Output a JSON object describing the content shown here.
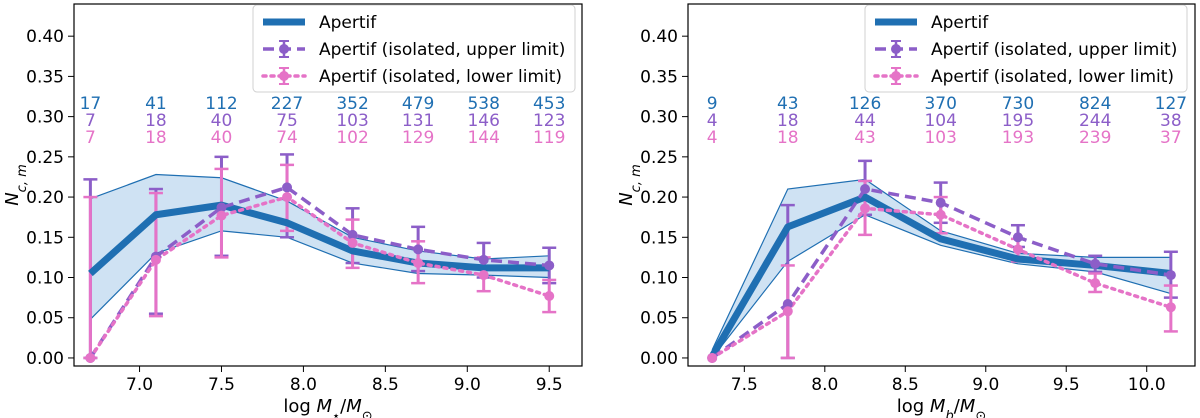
{
  "colors": {
    "apertif": "#1f6fb2",
    "band": "#cfe2f3",
    "upper": "#8c5ec8",
    "lower": "#e573c7",
    "count_apertif": "#1f6fb2",
    "count_upper": "#8c5ec8",
    "count_lower": "#e573c7"
  },
  "chart_data": [
    {
      "type": "line",
      "xlabel": "log M⋆/M⊙",
      "ylabel": "N_c,m",
      "xlim": [
        6.6,
        9.7
      ],
      "ylim": [
        -0.01,
        0.44
      ],
      "xticks": [
        "7.0",
        "7.5",
        "8.0",
        "8.5",
        "9.0",
        "9.5"
      ],
      "yticks": [
        "0.00",
        "0.05",
        "0.10",
        "0.15",
        "0.20",
        "0.25",
        "0.30",
        "0.35",
        "0.40"
      ],
      "legend": [
        "Apertif",
        "Apertif (isolated, upper limit)",
        "Apertif (isolated, lower limit)"
      ],
      "x": [
        6.7,
        7.1,
        7.5,
        7.9,
        8.3,
        8.7,
        9.1,
        9.5
      ],
      "apertif": [
        0.105,
        0.178,
        0.19,
        0.168,
        0.133,
        0.118,
        0.112,
        0.112
      ],
      "apertif_band_upper": [
        0.198,
        0.228,
        0.224,
        0.195,
        0.15,
        0.133,
        0.123,
        0.127
      ],
      "apertif_band_lower": [
        0.048,
        0.13,
        0.158,
        0.15,
        0.118,
        0.105,
        0.103,
        0.1
      ],
      "upper_limit": [
        0.0,
        0.126,
        0.187,
        0.212,
        0.153,
        0.135,
        0.122,
        0.115
      ],
      "upper_err": [
        0.222,
        0.21,
        0.25,
        0.253,
        0.186,
        0.163,
        0.143,
        0.137
      ],
      "upper_err_low": [
        0.0,
        0.055,
        0.127,
        0.15,
        0.118,
        0.108,
        0.1,
        0.093
      ],
      "lower_limit": [
        0.0,
        0.122,
        0.177,
        0.2,
        0.143,
        0.118,
        0.103,
        0.077
      ],
      "lower_err": [
        0.2,
        0.205,
        0.235,
        0.24,
        0.172,
        0.145,
        0.125,
        0.097
      ],
      "lower_err_low": [
        0.0,
        0.052,
        0.125,
        0.158,
        0.112,
        0.093,
        0.083,
        0.057
      ],
      "counts_apertif": [
        "17",
        "41",
        "112",
        "227",
        "352",
        "479",
        "538",
        "453"
      ],
      "counts_upper": [
        "7",
        "18",
        "40",
        "75",
        "103",
        "131",
        "146",
        "123"
      ],
      "counts_lower": [
        "7",
        "18",
        "40",
        "74",
        "102",
        "129",
        "144",
        "119"
      ]
    },
    {
      "type": "line",
      "xlabel": "log M_b/M⊙",
      "ylabel": "N_c,m",
      "xlim": [
        7.15,
        10.3
      ],
      "ylim": [
        -0.01,
        0.44
      ],
      "xticks": [
        "7.5",
        "8.0",
        "8.5",
        "9.0",
        "9.5",
        "10.0"
      ],
      "yticks": [
        "0.00",
        "0.05",
        "0.10",
        "0.15",
        "0.20",
        "0.25",
        "0.30",
        "0.35",
        "0.40"
      ],
      "legend": [
        "Apertif",
        "Apertif (isolated, upper limit)",
        "Apertif (isolated, lower limit)"
      ],
      "x": [
        7.3,
        7.77,
        8.25,
        8.72,
        9.2,
        9.68,
        10.15
      ],
      "apertif": [
        0.002,
        0.163,
        0.2,
        0.148,
        0.123,
        0.115,
        0.105
      ],
      "apertif_band_upper": [
        0.01,
        0.21,
        0.222,
        0.158,
        0.13,
        0.125,
        0.125
      ],
      "apertif_band_lower": [
        0.0,
        0.12,
        0.178,
        0.14,
        0.117,
        0.107,
        0.08
      ],
      "upper_limit": [
        0.0,
        0.067,
        0.21,
        0.193,
        0.15,
        0.117,
        0.103
      ],
      "upper_err": [
        0.0,
        0.19,
        0.245,
        0.218,
        0.165,
        0.127,
        0.132
      ],
      "upper_err_low": [
        0.0,
        0.0,
        0.178,
        0.168,
        0.138,
        0.107,
        0.075
      ],
      "lower_limit": [
        0.0,
        0.058,
        0.186,
        0.178,
        0.135,
        0.093,
        0.063
      ],
      "lower_err": [
        0.0,
        0.115,
        0.22,
        0.2,
        0.148,
        0.105,
        0.09
      ],
      "lower_err_low": [
        0.0,
        0.0,
        0.153,
        0.155,
        0.12,
        0.082,
        0.033
      ],
      "counts_apertif": [
        "9",
        "43",
        "126",
        "370",
        "730",
        "824",
        "127"
      ],
      "counts_upper": [
        "4",
        "18",
        "44",
        "104",
        "195",
        "244",
        "38"
      ],
      "counts_lower": [
        "4",
        "18",
        "43",
        "103",
        "193",
        "239",
        "37"
      ]
    }
  ]
}
